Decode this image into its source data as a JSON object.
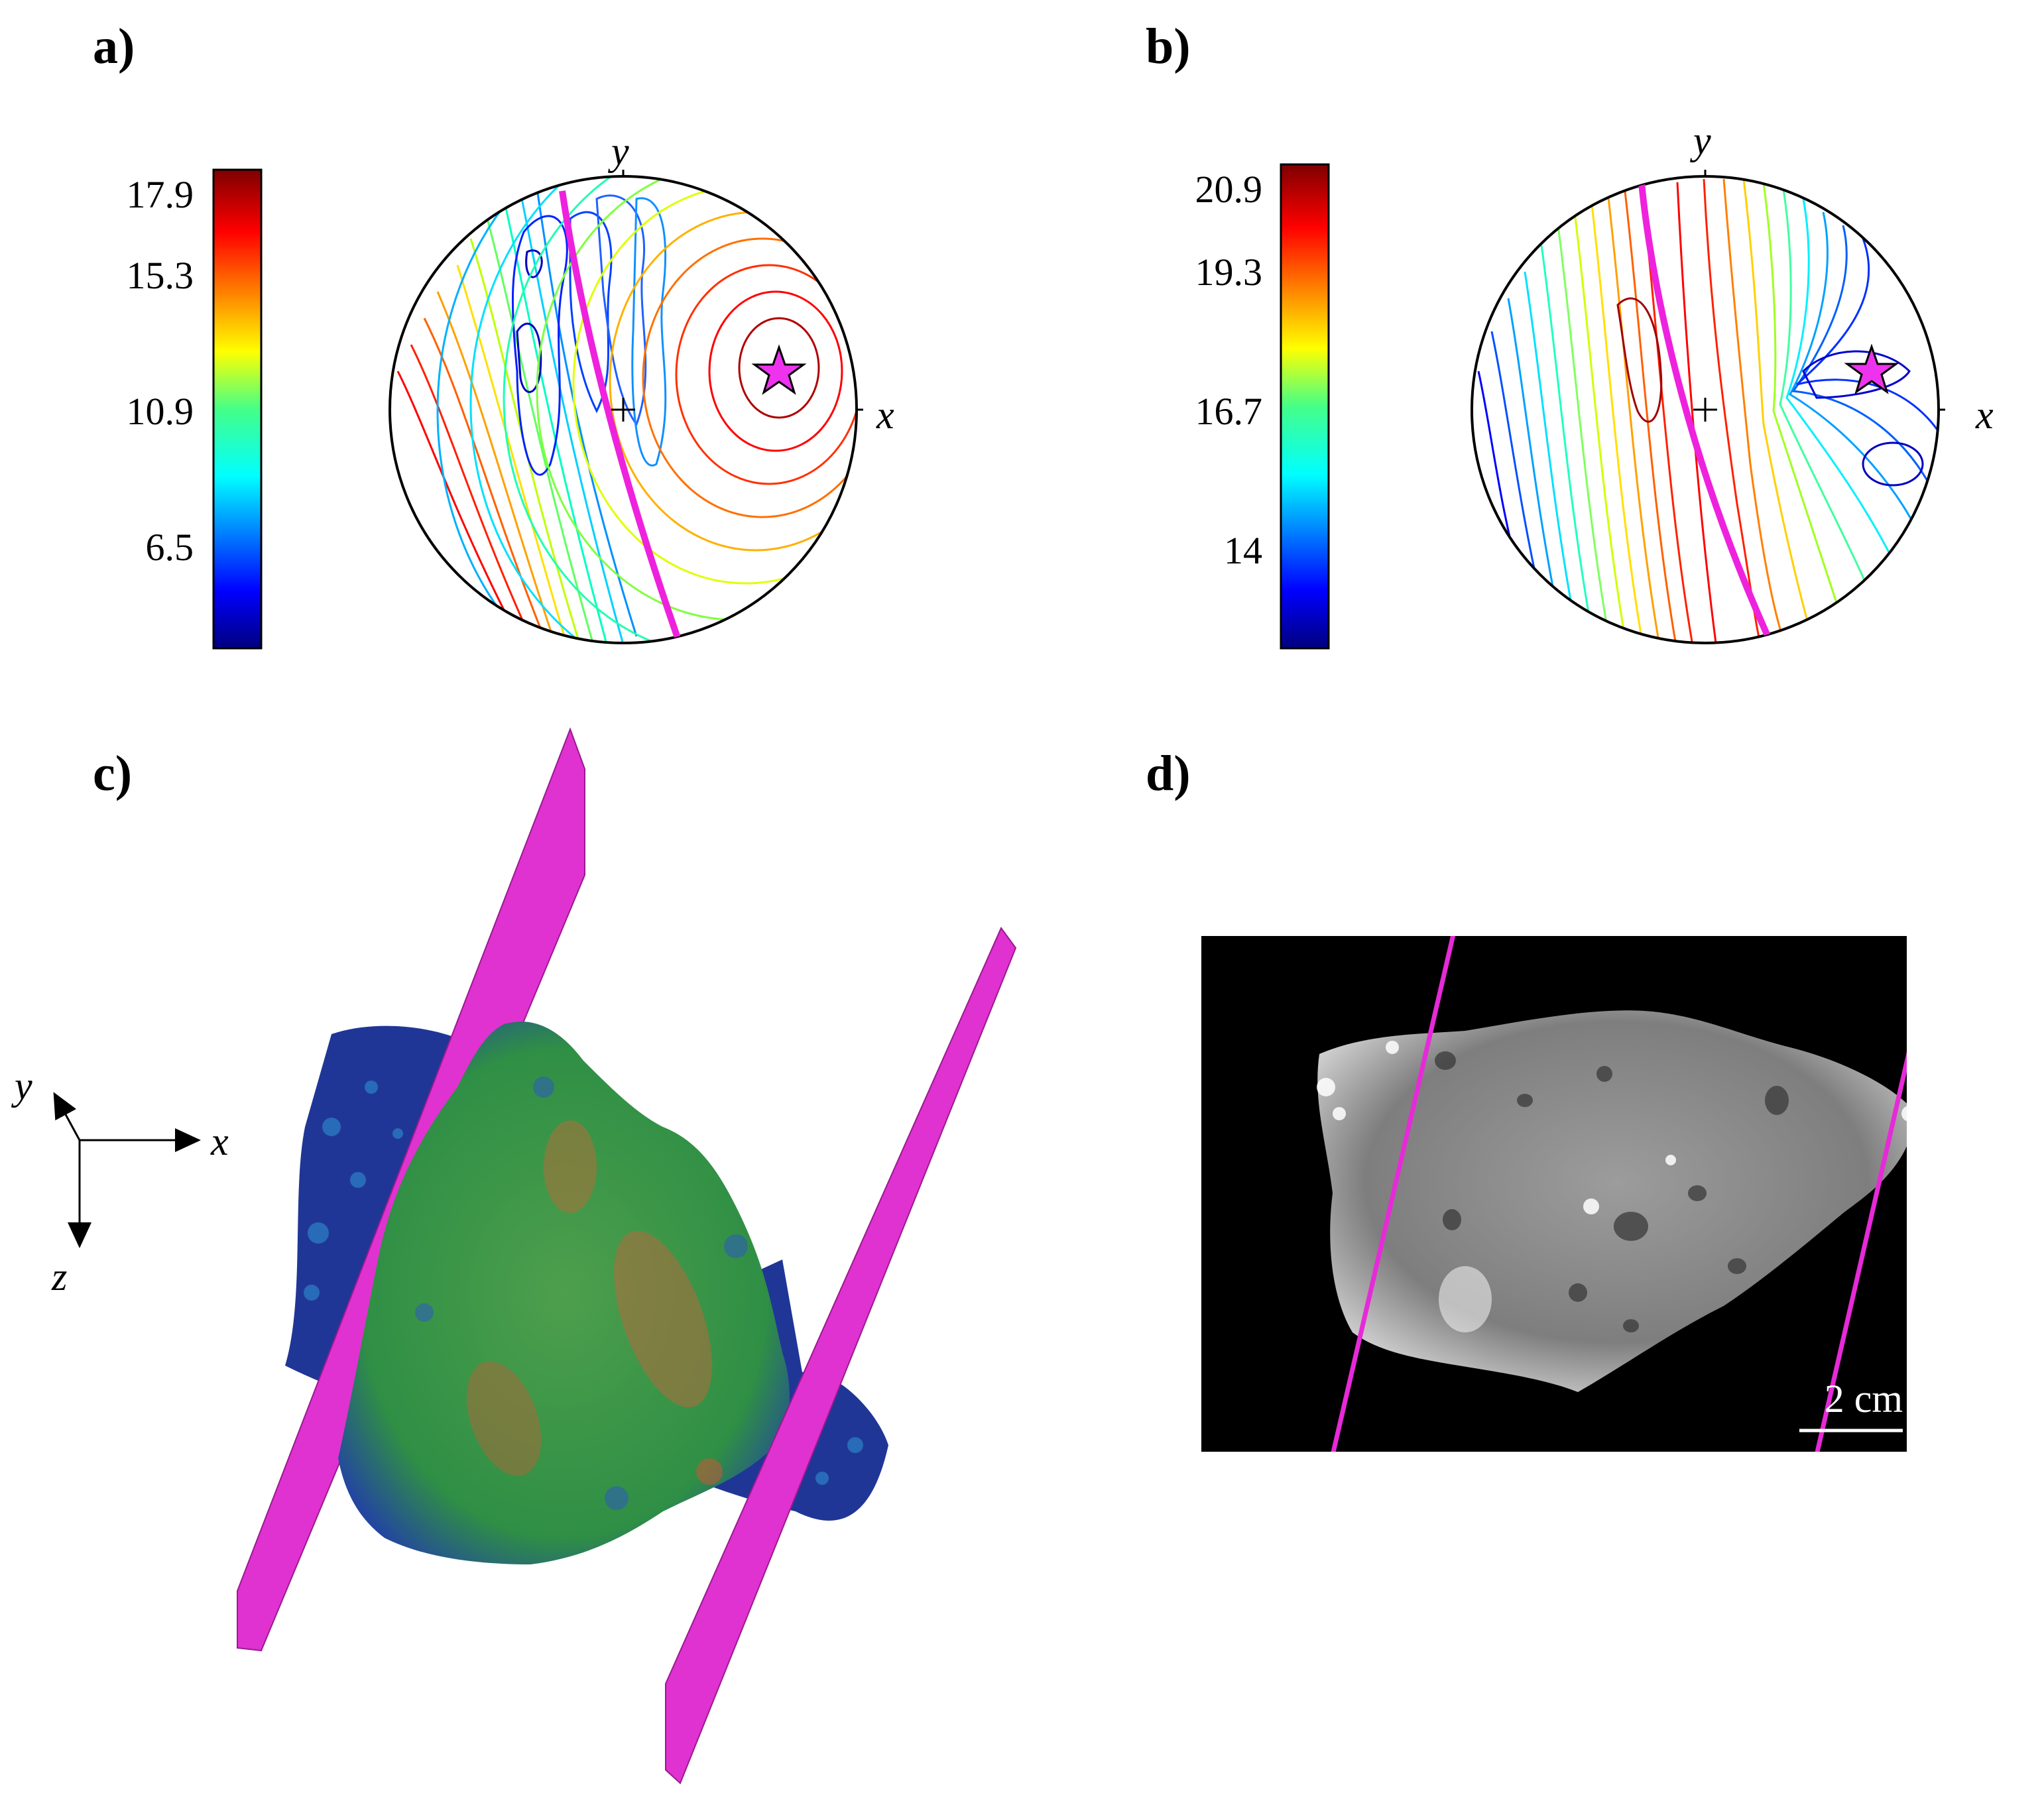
{
  "panels": {
    "a": {
      "label": "a)",
      "colorbar_ticks": [
        "17.9",
        "15.3",
        "10.9",
        "6.5"
      ],
      "axis_x": "x",
      "axis_y": "y"
    },
    "b": {
      "label": "b)",
      "colorbar_ticks": [
        "20.9",
        "19.3",
        "16.7",
        "14"
      ],
      "axis_x": "x",
      "axis_y": "y"
    },
    "c": {
      "label": "c)",
      "axis_x": "x",
      "axis_y": "y",
      "axis_z": "z"
    },
    "d": {
      "label": "d)",
      "scale_bar": "2 cm"
    }
  },
  "colors": {
    "plane": "#e830d6",
    "star": "#ee33ee",
    "rock_green": "#3d9a4a",
    "rock_blue": "#22348c"
  },
  "colormap": [
    "#00008f",
    "#0000ff",
    "#00a0ff",
    "#00ffff",
    "#40ff80",
    "#a0ff00",
    "#ffff00",
    "#ffa000",
    "#ff4000",
    "#ff0000",
    "#800000"
  ]
}
